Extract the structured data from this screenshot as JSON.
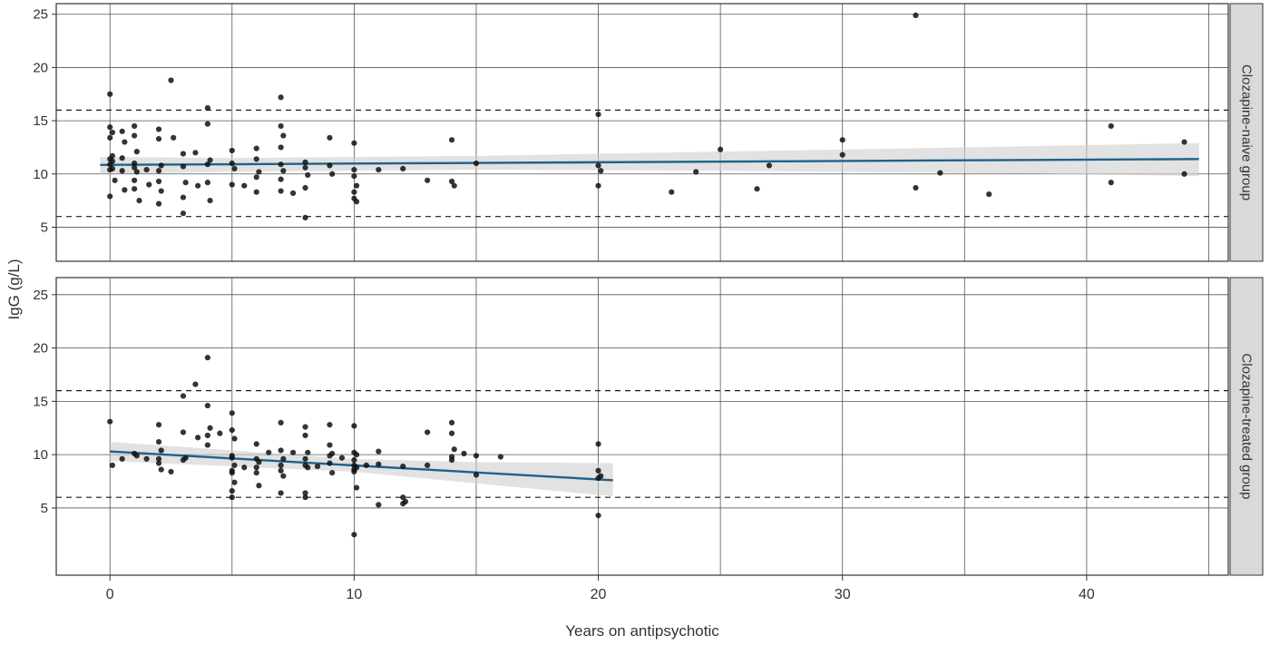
{
  "figure": {
    "xlabel": "Years on antipsychotic",
    "ylabel": "IgG (g/L)",
    "facet_labels": [
      "Clozapine-naive group",
      "Clozapine-treated group"
    ]
  },
  "chart_data": {
    "type": "scatter",
    "title": "",
    "xlabel": "Years on antipsychotic",
    "ylabel": "IgG (g/L)",
    "x_major_ticks": [
      0,
      10,
      20,
      30,
      40
    ],
    "x_minor_gridlines": [
      5,
      15,
      25,
      35,
      45
    ],
    "y_ticks": [
      5,
      10,
      15,
      20,
      25
    ],
    "xlim": [
      -2.2,
      45.8
    ],
    "reference_lines": [
      6,
      16
    ],
    "grid": "on",
    "legend": "none",
    "facet_axis": "right",
    "colors": {
      "point": "#111111",
      "line": "#1f618d",
      "band": "#cfcfcf",
      "strip_bg": "#d9d9d9",
      "grid": "#555555",
      "axis": "#333333"
    },
    "panels": [
      {
        "label": "Clozapine-naive group",
        "ylim": [
          1.8,
          26.0
        ],
        "trend": {
          "x": [
            -0.4,
            44.6
          ],
          "y": [
            10.85,
            11.4
          ]
        },
        "band": {
          "x": [
            -0.4,
            5,
            15,
            25,
            35,
            44.6
          ],
          "upper": [
            11.6,
            11.5,
            11.7,
            12.1,
            12.5,
            12.9
          ],
          "lower": [
            10.0,
            10.2,
            10.4,
            10.3,
            10.1,
            9.8
          ]
        },
        "points": [
          [
            0,
            17.5
          ],
          [
            0,
            14.4
          ],
          [
            0.1,
            13.9
          ],
          [
            0,
            13.4
          ],
          [
            0.1,
            11.7
          ],
          [
            0,
            11.4
          ],
          [
            0.1,
            11.2
          ],
          [
            0,
            10.9
          ],
          [
            0.1,
            10.5
          ],
          [
            0,
            10.4
          ],
          [
            0.2,
            9.4
          ],
          [
            0,
            7.9
          ],
          [
            0.5,
            14.0
          ],
          [
            0.6,
            13.0
          ],
          [
            0.5,
            11.5
          ],
          [
            0.5,
            10.3
          ],
          [
            0.6,
            8.5
          ],
          [
            1,
            14.5
          ],
          [
            1,
            13.6
          ],
          [
            1.1,
            12.1
          ],
          [
            1,
            11.0
          ],
          [
            1,
            10.6
          ],
          [
            1.1,
            10.2
          ],
          [
            1,
            9.4
          ],
          [
            1,
            8.6
          ],
          [
            1.2,
            7.5
          ],
          [
            1.5,
            10.4
          ],
          [
            1.6,
            9.0
          ],
          [
            2,
            14.2
          ],
          [
            2,
            13.3
          ],
          [
            2.1,
            10.8
          ],
          [
            2,
            10.3
          ],
          [
            2,
            9.3
          ],
          [
            2.1,
            8.4
          ],
          [
            2,
            7.2
          ],
          [
            2.5,
            18.8
          ],
          [
            2.6,
            13.4
          ],
          [
            3,
            11.9
          ],
          [
            3,
            10.7
          ],
          [
            3.1,
            9.2
          ],
          [
            3,
            7.8
          ],
          [
            3,
            6.3
          ],
          [
            3.5,
            12.0
          ],
          [
            3.6,
            8.9
          ],
          [
            4,
            16.2
          ],
          [
            4,
            14.7
          ],
          [
            4.1,
            11.3
          ],
          [
            4,
            10.9
          ],
          [
            4,
            9.2
          ],
          [
            4.1,
            7.5
          ],
          [
            5,
            12.2
          ],
          [
            5,
            11.0
          ],
          [
            5.1,
            10.5
          ],
          [
            5,
            9.0
          ],
          [
            5.5,
            8.9
          ],
          [
            6,
            12.4
          ],
          [
            6,
            11.4
          ],
          [
            6.1,
            10.2
          ],
          [
            6,
            9.7
          ],
          [
            6,
            8.3
          ],
          [
            7,
            17.2
          ],
          [
            7,
            14.5
          ],
          [
            7.1,
            13.6
          ],
          [
            7,
            12.5
          ],
          [
            7,
            10.9
          ],
          [
            7.1,
            10.3
          ],
          [
            7,
            9.5
          ],
          [
            7,
            8.4
          ],
          [
            7.5,
            8.2
          ],
          [
            8,
            11.1
          ],
          [
            8,
            10.6
          ],
          [
            8.1,
            9.9
          ],
          [
            8,
            8.7
          ],
          [
            8,
            5.9
          ],
          [
            9,
            13.4
          ],
          [
            9,
            10.8
          ],
          [
            9.1,
            10.0
          ],
          [
            10,
            12.9
          ],
          [
            10,
            10.4
          ],
          [
            10,
            9.8
          ],
          [
            10.1,
            8.9
          ],
          [
            10,
            8.3
          ],
          [
            10,
            7.7
          ],
          [
            10.1,
            7.4
          ],
          [
            11,
            10.4
          ],
          [
            12,
            10.5
          ],
          [
            13,
            9.4
          ],
          [
            14,
            13.2
          ],
          [
            14,
            9.3
          ],
          [
            14.1,
            8.9
          ],
          [
            15,
            11.0
          ],
          [
            20,
            15.6
          ],
          [
            20,
            10.8
          ],
          [
            20.1,
            10.3
          ],
          [
            20,
            8.9
          ],
          [
            23,
            8.3
          ],
          [
            24,
            10.2
          ],
          [
            25,
            12.3
          ],
          [
            26.5,
            8.6
          ],
          [
            27,
            10.8
          ],
          [
            30,
            13.2
          ],
          [
            30,
            11.8
          ],
          [
            33,
            24.9
          ],
          [
            33,
            8.7
          ],
          [
            34,
            10.1
          ],
          [
            36,
            8.1
          ],
          [
            41,
            14.5
          ],
          [
            41,
            9.2
          ],
          [
            44,
            13.0
          ],
          [
            44,
            10.0
          ]
        ]
      },
      {
        "label": "Clozapine-treated group",
        "ylim": [
          -1.3,
          26.6
        ],
        "trend": {
          "x": [
            0,
            20.6
          ],
          "y": [
            10.3,
            7.6
          ]
        },
        "band": {
          "x": [
            0,
            5,
            10,
            15,
            20.6
          ],
          "upper": [
            11.2,
            10.4,
            9.6,
            9.3,
            9.2
          ],
          "lower": [
            9.4,
            8.9,
            8.4,
            7.3,
            6.1
          ]
        },
        "points": [
          [
            0,
            13.1
          ],
          [
            0.1,
            9.0
          ],
          [
            0.5,
            9.6
          ],
          [
            1,
            10.1
          ],
          [
            1.1,
            9.9
          ],
          [
            1.5,
            9.6
          ],
          [
            2,
            12.8
          ],
          [
            2,
            11.2
          ],
          [
            2.1,
            10.4
          ],
          [
            2,
            9.6
          ],
          [
            2,
            9.2
          ],
          [
            2.1,
            8.6
          ],
          [
            2.5,
            8.4
          ],
          [
            3,
            15.5
          ],
          [
            3,
            12.1
          ],
          [
            3.1,
            9.7
          ],
          [
            3,
            9.5
          ],
          [
            3.5,
            16.6
          ],
          [
            3.6,
            11.6
          ],
          [
            4,
            19.1
          ],
          [
            4,
            14.6
          ],
          [
            4.1,
            12.5
          ],
          [
            4,
            11.8
          ],
          [
            4,
            10.9
          ],
          [
            4.5,
            12.0
          ],
          [
            5,
            13.9
          ],
          [
            5,
            12.3
          ],
          [
            5.1,
            11.5
          ],
          [
            5,
            9.9
          ],
          [
            5,
            9.7
          ],
          [
            5.1,
            9.0
          ],
          [
            5,
            8.5
          ],
          [
            5,
            8.3
          ],
          [
            5.1,
            7.4
          ],
          [
            5,
            6.6
          ],
          [
            5,
            6.0
          ],
          [
            5.5,
            8.8
          ],
          [
            6,
            11.0
          ],
          [
            6,
            9.6
          ],
          [
            6.1,
            9.3
          ],
          [
            6,
            8.8
          ],
          [
            6,
            8.3
          ],
          [
            6.1,
            7.1
          ],
          [
            6.5,
            10.2
          ],
          [
            7,
            13.0
          ],
          [
            7,
            10.4
          ],
          [
            7.1,
            9.6
          ],
          [
            7,
            9.0
          ],
          [
            7,
            8.5
          ],
          [
            7.1,
            8.0
          ],
          [
            7,
            6.4
          ],
          [
            7.5,
            10.2
          ],
          [
            8,
            12.6
          ],
          [
            8,
            11.8
          ],
          [
            8.1,
            10.2
          ],
          [
            8,
            9.6
          ],
          [
            8,
            9.0
          ],
          [
            8.1,
            8.8
          ],
          [
            8,
            6.4
          ],
          [
            8,
            6.0
          ],
          [
            8.5,
            8.9
          ],
          [
            9,
            12.8
          ],
          [
            9,
            10.9
          ],
          [
            9.1,
            10.1
          ],
          [
            9,
            9.9
          ],
          [
            9,
            9.2
          ],
          [
            9.1,
            8.3
          ],
          [
            9.5,
            9.7
          ],
          [
            10,
            12.7
          ],
          [
            10,
            10.2
          ],
          [
            10.1,
            10.0
          ],
          [
            10,
            9.5
          ],
          [
            10,
            9.0
          ],
          [
            10.1,
            8.8
          ],
          [
            10,
            8.6
          ],
          [
            10,
            8.4
          ],
          [
            10.1,
            6.9
          ],
          [
            10,
            2.5
          ],
          [
            10.5,
            9.0
          ],
          [
            11,
            10.3
          ],
          [
            11,
            9.1
          ],
          [
            11,
            5.3
          ],
          [
            12,
            8.9
          ],
          [
            12,
            6.0
          ],
          [
            12.1,
            5.6
          ],
          [
            12,
            5.4
          ],
          [
            13,
            12.1
          ],
          [
            13,
            9.0
          ],
          [
            14,
            13.0
          ],
          [
            14,
            12.0
          ],
          [
            14.1,
            10.5
          ],
          [
            14,
            9.8
          ],
          [
            14,
            9.5
          ],
          [
            14.5,
            10.1
          ],
          [
            15,
            9.9
          ],
          [
            15,
            8.1
          ],
          [
            16,
            9.8
          ],
          [
            20,
            11.0
          ],
          [
            20,
            8.5
          ],
          [
            20.1,
            8.0
          ],
          [
            20,
            7.8
          ],
          [
            20,
            4.3
          ]
        ]
      }
    ]
  }
}
